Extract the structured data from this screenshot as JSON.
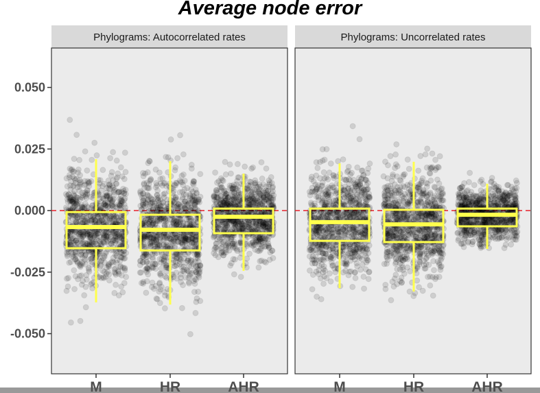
{
  "chart_data": {
    "type": "boxplot",
    "title": "Average node error",
    "xlabel": "",
    "ylabel": "",
    "ylim": [
      -0.0645,
      0.0655
    ],
    "yticks": [
      "0.050",
      "0.025",
      "0.000",
      "-0.025",
      "-0.050"
    ],
    "ytick_values": [
      0.05,
      0.025,
      0,
      -0.025,
      -0.05
    ],
    "reference_line": {
      "y": 0,
      "style": "dashed",
      "color": "#e8202a"
    },
    "grid": false,
    "categories": [
      "M",
      "HR",
      "AHR"
    ],
    "colors": {
      "box": "#ffff4d",
      "points": "#000000",
      "panel_bg": "#ebebeb",
      "strip_bg": "#d9d9d9"
    },
    "panels": [
      {
        "strip": "Phylograms: Autocorrelated rates",
        "boxes": [
          {
            "category": "M",
            "whisker_low": -0.0373,
            "q1": -0.0153,
            "median": -0.0067,
            "q3": -0.0006,
            "whisker_high": 0.0209
          },
          {
            "category": "HR",
            "whisker_low": -0.0382,
            "q1": -0.0162,
            "median": -0.0078,
            "q3": -0.0017,
            "whisker_high": 0.0201
          },
          {
            "category": "AHR",
            "whisker_low": -0.0245,
            "q1": -0.0092,
            "median": -0.0025,
            "q3": 0.0008,
            "whisker_high": 0.015
          }
        ]
      },
      {
        "strip": "Phylograms: Uncorrelated rates",
        "boxes": [
          {
            "category": "M",
            "whisker_low": -0.0315,
            "q1": -0.0123,
            "median": -0.0047,
            "q3": 0.0008,
            "whisker_high": 0.0192
          },
          {
            "category": "HR",
            "whisker_low": -0.0329,
            "q1": -0.0128,
            "median": -0.0056,
            "q3": 0.0003,
            "whisker_high": 0.0198
          },
          {
            "category": "AHR",
            "whisker_low": -0.0156,
            "q1": -0.0064,
            "median": -0.0017,
            "q3": 0.0008,
            "whisker_high": 0.0109
          }
        ]
      }
    ]
  }
}
